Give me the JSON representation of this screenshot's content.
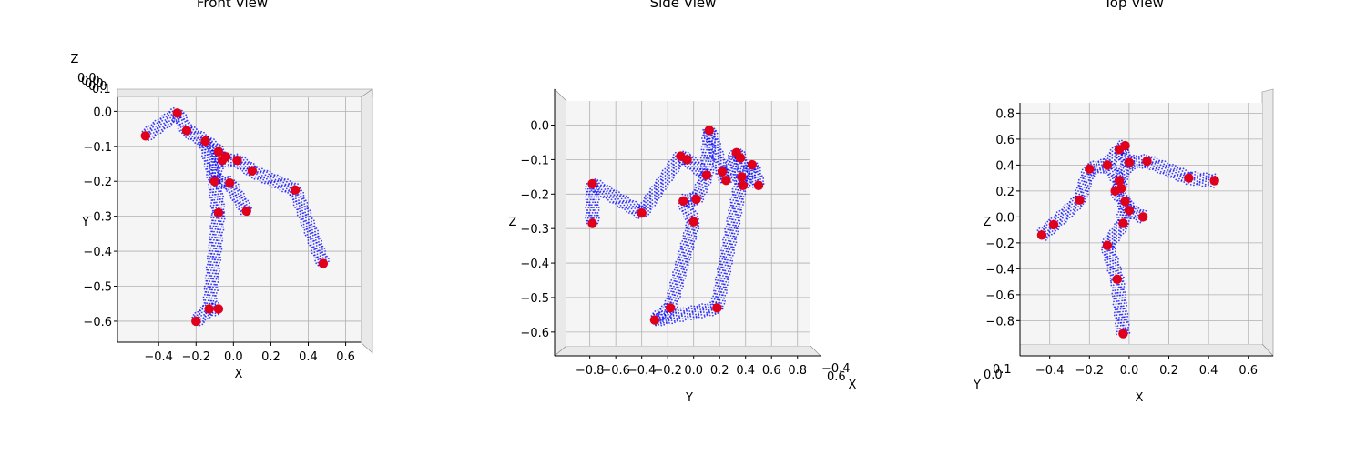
{
  "chart_data": [
    {
      "type": "scatter",
      "title": "Front View",
      "xlabel": "X",
      "ylabel": "Y",
      "zlabel": "Z",
      "x_ticks": [
        "−0.4",
        "−0.2",
        "0.0",
        "0.2",
        "0.4",
        "0.6"
      ],
      "y_ticks": [
        "0.0",
        "−0.1",
        "−0.2",
        "−0.3",
        "−0.4",
        "−0.5",
        "−0.6"
      ],
      "xlim": [
        -0.62,
        0.68
      ],
      "ylim": [
        -0.66,
        0.04
      ],
      "grid": true,
      "colors": {
        "mesh": "#0000ff",
        "joints": "#e0001b"
      },
      "joints": [
        {
          "x": -0.3,
          "y": -0.005
        },
        {
          "x": -0.47,
          "y": -0.07
        },
        {
          "x": -0.25,
          "y": -0.055
        },
        {
          "x": -0.15,
          "y": -0.085
        },
        {
          "x": -0.08,
          "y": -0.115
        },
        {
          "x": -0.06,
          "y": -0.14
        },
        {
          "x": -0.04,
          "y": -0.13
        },
        {
          "x": 0.02,
          "y": -0.14
        },
        {
          "x": -0.1,
          "y": -0.2
        },
        {
          "x": -0.02,
          "y": -0.205
        },
        {
          "x": 0.1,
          "y": -0.17
        },
        {
          "x": -0.08,
          "y": -0.29
        },
        {
          "x": 0.07,
          "y": -0.285
        },
        {
          "x": 0.33,
          "y": -0.225
        },
        {
          "x": 0.48,
          "y": -0.435
        },
        {
          "x": -0.13,
          "y": -0.565
        },
        {
          "x": -0.08,
          "y": -0.565
        },
        {
          "x": -0.2,
          "y": -0.6
        }
      ]
    },
    {
      "type": "scatter",
      "title": "Side View",
      "xlabel": "Y",
      "ylabel": "Z",
      "zlabel": "X",
      "x_ticks": [
        "−0.8",
        "−0.6",
        "−0.4",
        "−0.2",
        "0.0",
        "0.2",
        "0.4",
        "0.6",
        "0.8"
      ],
      "y_ticks": [
        "0.0",
        "−0.1",
        "−0.2",
        "−0.3",
        "−0.4",
        "−0.5",
        "−0.6"
      ],
      "z_ticks": [
        "−0.4",
        "0.6"
      ],
      "xlim": [
        -0.98,
        0.9
      ],
      "ylim": [
        -0.64,
        0.07
      ],
      "grid": true,
      "colors": {
        "mesh": "#0000ff",
        "joints": "#e0001b"
      },
      "joints": [
        {
          "x": -0.78,
          "y": -0.17
        },
        {
          "x": -0.78,
          "y": -0.285
        },
        {
          "x": -0.4,
          "y": -0.255
        },
        {
          "x": -0.18,
          "y": -0.53
        },
        {
          "x": -0.3,
          "y": -0.565
        },
        {
          "x": -0.1,
          "y": -0.09
        },
        {
          "x": -0.05,
          "y": -0.1
        },
        {
          "x": 0.1,
          "y": -0.145
        },
        {
          "x": -0.08,
          "y": -0.22
        },
        {
          "x": 0.02,
          "y": -0.215
        },
        {
          "x": 0.0,
          "y": -0.28
        },
        {
          "x": 0.12,
          "y": -0.015
        },
        {
          "x": 0.22,
          "y": -0.135
        },
        {
          "x": 0.25,
          "y": -0.16
        },
        {
          "x": 0.33,
          "y": -0.08
        },
        {
          "x": 0.36,
          "y": -0.095
        },
        {
          "x": 0.37,
          "y": -0.15
        },
        {
          "x": 0.38,
          "y": -0.175
        },
        {
          "x": 0.45,
          "y": -0.115
        },
        {
          "x": 0.5,
          "y": -0.175
        },
        {
          "x": 0.18,
          "y": -0.53
        }
      ]
    },
    {
      "type": "scatter",
      "title": "Top View",
      "xlabel": "X",
      "ylabel": "Z",
      "zlabel": "Y",
      "x_ticks": [
        "−0.4",
        "−0.2",
        "0.0",
        "0.2",
        "0.4",
        "0.6"
      ],
      "y_ticks": [
        "0.8",
        "0.6",
        "0.4",
        "0.2",
        "0.0",
        "−0.2",
        "−0.4",
        "−0.6",
        "−0.8"
      ],
      "z_ticks": [
        "0.0",
        "0.1"
      ],
      "xlim": [
        -0.55,
        0.67
      ],
      "ylim": [
        -0.98,
        0.88
      ],
      "grid": true,
      "colors": {
        "mesh": "#0000ff",
        "joints": "#e0001b"
      },
      "joints": [
        {
          "x": -0.05,
          "y": 0.52
        },
        {
          "x": -0.02,
          "y": 0.55
        },
        {
          "x": -0.11,
          "y": 0.4
        },
        {
          "x": -0.2,
          "y": 0.37
        },
        {
          "x": 0.0,
          "y": 0.42
        },
        {
          "x": 0.09,
          "y": 0.43
        },
        {
          "x": -0.05,
          "y": 0.28
        },
        {
          "x": -0.04,
          "y": 0.22
        },
        {
          "x": -0.07,
          "y": 0.2
        },
        {
          "x": -0.02,
          "y": 0.12
        },
        {
          "x": 0.0,
          "y": 0.05
        },
        {
          "x": 0.07,
          "y": 0.0
        },
        {
          "x": -0.03,
          "y": -0.05
        },
        {
          "x": -0.25,
          "y": 0.13
        },
        {
          "x": -0.38,
          "y": -0.06
        },
        {
          "x": -0.44,
          "y": -0.14
        },
        {
          "x": -0.11,
          "y": -0.22
        },
        {
          "x": -0.06,
          "y": -0.48
        },
        {
          "x": -0.03,
          "y": -0.9
        },
        {
          "x": 0.3,
          "y": 0.3
        },
        {
          "x": 0.43,
          "y": 0.28
        }
      ]
    }
  ]
}
